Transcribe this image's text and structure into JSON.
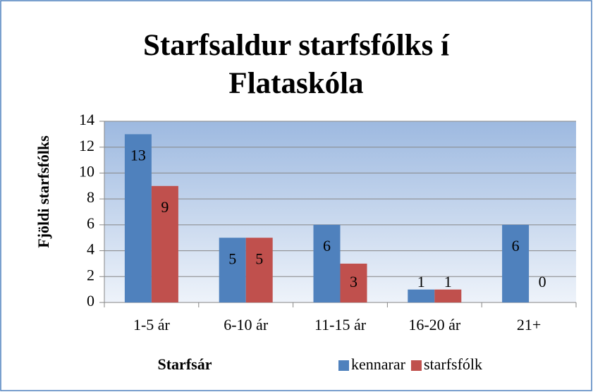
{
  "chart_data": {
    "type": "bar",
    "title": "Starfsaldur starfsfólks í Flataskóla",
    "x_label": "Starfsár",
    "y_label": "Fjöldi starfsfólks",
    "categories": [
      "1-5 ár",
      "6-10 ár",
      "11-15 ár",
      "16-20 ár",
      "21+"
    ],
    "series": [
      {
        "name": "kennarar",
        "color": "#4f81bd",
        "values": [
          13,
          5,
          6,
          1,
          6
        ]
      },
      {
        "name": "starfsfólk",
        "color": "#c0504d",
        "values": [
          9,
          5,
          3,
          1,
          0
        ]
      }
    ],
    "ylim": [
      0,
      14
    ],
    "yticks": [
      0,
      2,
      4,
      6,
      8,
      10,
      12,
      14
    ],
    "grid": true,
    "legend": "bottom"
  }
}
